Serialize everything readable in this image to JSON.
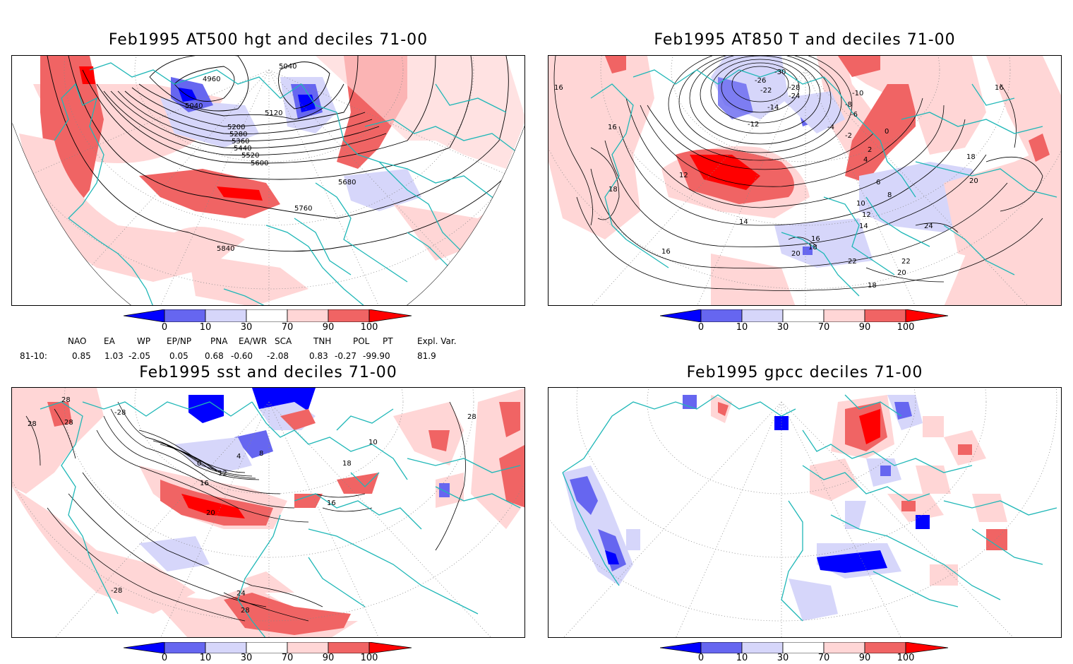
{
  "panels": [
    {
      "title": "Feb1995 AT500 hgt and deciles 71-00",
      "contour_labels": [
        "4960",
        "5040",
        "5040",
        "5120",
        "5200",
        "5280",
        "5360",
        "5440",
        "5520",
        "5600",
        "5680",
        "5760",
        "5840"
      ]
    },
    {
      "title": "Feb1995 AT850 T and deciles 71-00",
      "contour_labels": [
        "16",
        "16",
        "16",
        "18",
        "12",
        "-26",
        "-30",
        "-28",
        "-22",
        "-24",
        "-14",
        "-12",
        "-10",
        "-8",
        "-6",
        "-4",
        "-2",
        "0",
        "2",
        "4",
        "6",
        "8",
        "10",
        "12",
        "14",
        "14",
        "16",
        "16",
        "18",
        "18",
        "20",
        "20",
        "22",
        "22",
        "24",
        "20",
        "18"
      ]
    },
    {
      "title": "Feb1995 sst and deciles 71-00",
      "contour_labels": [
        "28",
        "28",
        "28",
        "28",
        "0",
        "4",
        "8",
        "12",
        "16",
        "20",
        "24",
        "28",
        "-28",
        "-28",
        "18",
        "16",
        "10"
      ]
    },
    {
      "title": "Feb1995 gpcc deciles 71-00",
      "contour_labels": []
    }
  ],
  "colorbar": {
    "labels": [
      "0",
      "10",
      "30",
      "70",
      "90",
      "100"
    ],
    "colors": [
      "#0000ff",
      "#6666f0",
      "#d6d6fa",
      "#ffffff",
      "#ffd6d6",
      "#f06464",
      "#ff0000"
    ]
  },
  "indices": {
    "headers": [
      "NAO",
      "EA",
      "WP",
      "EP/NP",
      "PNA",
      "EA/WR",
      "SCA",
      "TNH",
      "POL",
      "PT",
      "Expl. Var."
    ],
    "row_label": "81-10:",
    "values": [
      "0.85",
      "1.03",
      "-2.05",
      "0.05",
      "0.68",
      "-0.60",
      "-2.08",
      "0.83",
      "-0.27",
      "-99.90",
      "81.9"
    ]
  },
  "colors": {
    "coast": "#1fb7b7",
    "contour": "#000000",
    "grid": "#888888"
  }
}
